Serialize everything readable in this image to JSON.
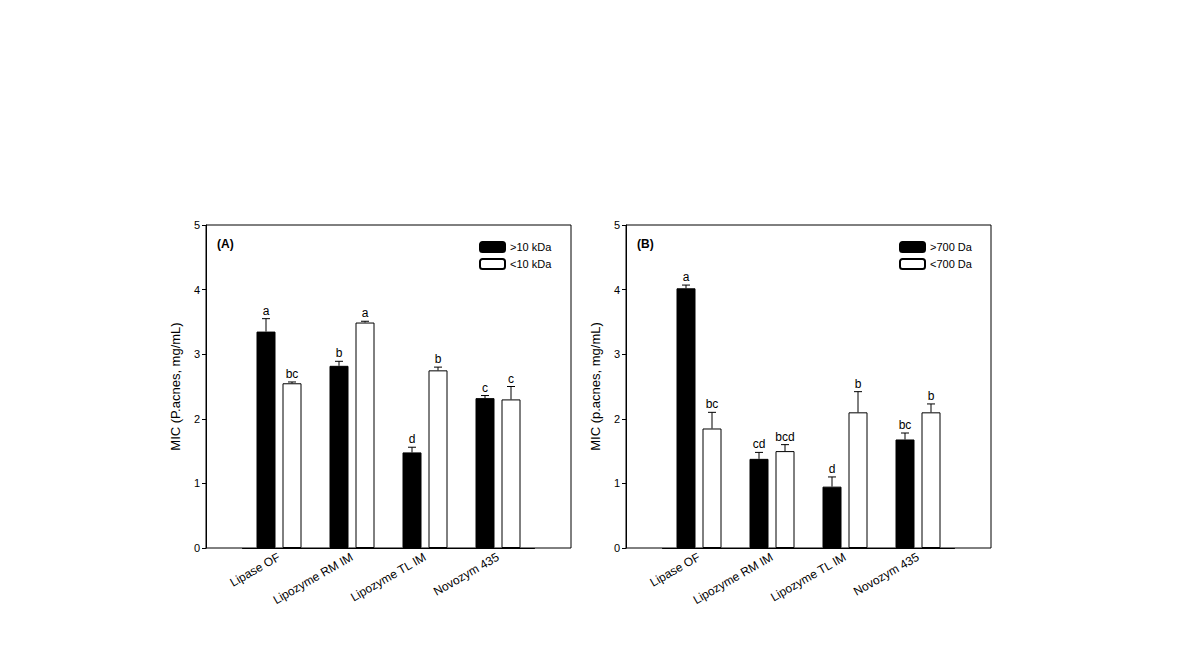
{
  "chart_data": [
    {
      "type": "bar",
      "title": "(A)",
      "ylabel": "MIC (P.acnes, mg/mL)",
      "categories": [
        "Lipase OF",
        "Lipozyme RM IM",
        "Lipozyme TL IM",
        "Novozym 435"
      ],
      "series": [
        {
          "name": ">10 kDa",
          "color": "#000000",
          "values": [
            3.35,
            2.82,
            1.48,
            2.32
          ],
          "errors": [
            0.2,
            0.07,
            0.08,
            0.04
          ],
          "letters": [
            "a",
            "b",
            "d",
            "c"
          ]
        },
        {
          "name": "<10 kDa",
          "color": "#ffffff",
          "values": [
            2.55,
            3.49,
            2.75,
            2.3
          ],
          "errors": [
            0.02,
            0.02,
            0.05,
            0.2
          ],
          "letters": [
            "bc",
            "a",
            "b",
            "c"
          ]
        }
      ],
      "ylim": [
        0,
        5
      ],
      "yticks": [
        0,
        1,
        2,
        3,
        4,
        5
      ],
      "grid": false,
      "legend": "upper right"
    },
    {
      "type": "bar",
      "title": "(B)",
      "ylabel": "MIC (p.acnes, mg/mL)",
      "categories": [
        "Lipase OF",
        "Lipozyme RM IM",
        "Lipozyme TL IM",
        "Novozym 435"
      ],
      "series": [
        {
          "name": ">700 Da",
          "color": "#000000",
          "values": [
            4.02,
            1.38,
            0.95,
            1.68
          ],
          "errors": [
            0.05,
            0.1,
            0.15,
            0.1
          ],
          "letters": [
            "a",
            "cd",
            "d",
            "bc"
          ]
        },
        {
          "name": "<700 Da",
          "color": "#ffffff",
          "values": [
            1.85,
            1.5,
            2.1,
            2.1
          ],
          "errors": [
            0.25,
            0.1,
            0.32,
            0.13
          ],
          "letters": [
            "bc",
            "bcd",
            "b",
            "b"
          ]
        }
      ],
      "ylim": [
        0,
        5
      ],
      "yticks": [
        0,
        1,
        2,
        3,
        4,
        5
      ],
      "grid": false,
      "legend": "upper right"
    }
  ]
}
